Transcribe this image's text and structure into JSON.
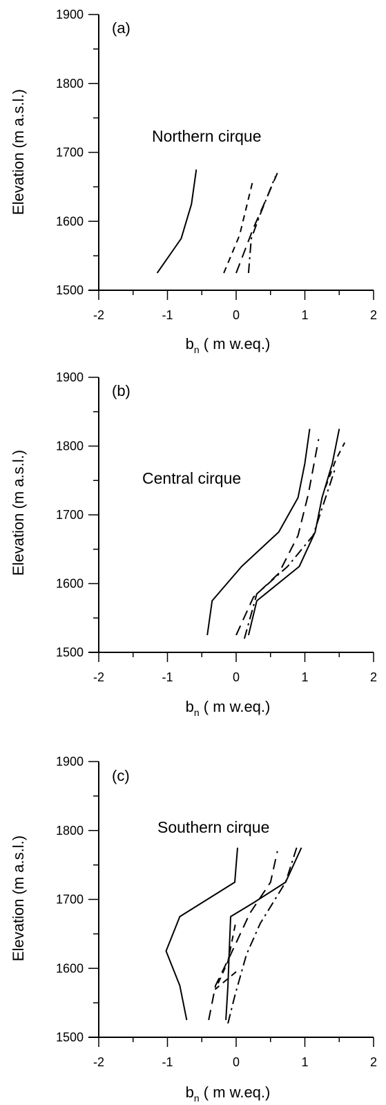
{
  "figure": {
    "colors": {
      "ink": "#000000",
      "background": "#ffffff"
    }
  },
  "chart_data": [
    {
      "type": "line",
      "panel_label": "(a)",
      "annotation": "Northern cirque",
      "xlabel_main": "b",
      "xlabel_sub": "n",
      "xlabel_rest": " ( m w.eq.)",
      "ylabel": "Elevation (m a.s.l.)",
      "xlim": [
        -2,
        2
      ],
      "ylim": [
        1500,
        1900
      ],
      "xticks": [
        -2,
        -1,
        0,
        1,
        2
      ],
      "yticks": [
        1500,
        1600,
        1700,
        1800,
        1900
      ],
      "grid": false,
      "series": [
        {
          "style": "solid",
          "points": [
            [
              -1.15,
              1525
            ],
            [
              -0.8,
              1575
            ],
            [
              -0.65,
              1625
            ],
            [
              -0.58,
              1675
            ]
          ]
        },
        {
          "style": "longdash",
          "points": [
            [
              0.0,
              1525
            ],
            [
              0.25,
              1590
            ],
            [
              0.45,
              1635
            ],
            [
              0.6,
              1670
            ]
          ]
        },
        {
          "style": "dash",
          "points": [
            [
              -0.18,
              1525
            ],
            [
              0.05,
              1580
            ],
            [
              0.25,
              1662
            ]
          ]
        },
        {
          "style": "dashdot",
          "points": [
            [
              0.18,
              1525
            ],
            [
              0.22,
              1575
            ],
            [
              0.35,
              1610
            ],
            [
              0.57,
              1665
            ]
          ]
        }
      ]
    },
    {
      "type": "line",
      "panel_label": "(b)",
      "annotation": "Central cirque",
      "xlabel_main": "b",
      "xlabel_sub": "n",
      "xlabel_rest": " ( m w.eq.)",
      "ylabel": "Elevation (m a.s.l.)",
      "xlim": [
        -2,
        2
      ],
      "ylim": [
        1500,
        1900
      ],
      "xticks": [
        -2,
        -1,
        0,
        1,
        2
      ],
      "yticks": [
        1500,
        1600,
        1700,
        1800,
        1900
      ],
      "grid": false,
      "series": [
        {
          "style": "solid",
          "points": [
            [
              -0.42,
              1525
            ],
            [
              -0.35,
              1575
            ],
            [
              0.08,
              1625
            ],
            [
              0.62,
              1675
            ],
            [
              0.9,
              1725
            ],
            [
              1.0,
              1775
            ],
            [
              1.07,
              1825
            ]
          ]
        },
        {
          "style": "solid",
          "points": [
            [
              0.18,
              1525
            ],
            [
              0.3,
              1575
            ],
            [
              0.92,
              1625
            ],
            [
              1.15,
              1675
            ],
            [
              1.25,
              1725
            ],
            [
              1.4,
              1775
            ],
            [
              1.5,
              1825
            ]
          ]
        },
        {
          "style": "longdash",
          "points": [
            [
              0.0,
              1525
            ],
            [
              0.25,
              1580
            ],
            [
              0.62,
              1615
            ],
            [
              0.9,
              1670
            ],
            [
              1.05,
              1730
            ],
            [
              1.2,
              1810
            ]
          ]
        },
        {
          "style": "dashdot",
          "points": [
            [
              0.12,
              1520
            ],
            [
              0.3,
              1585
            ],
            [
              0.75,
              1625
            ],
            [
              1.12,
              1670
            ],
            [
              1.45,
              1770
            ]
          ]
        },
        {
          "style": "dash",
          "points": [
            [
              1.3,
              1740
            ],
            [
              1.45,
              1780
            ],
            [
              1.58,
              1805
            ]
          ]
        }
      ]
    },
    {
      "type": "line",
      "panel_label": "(c)",
      "annotation": "Southern cirque",
      "xlabel_main": "b",
      "xlabel_sub": "n",
      "xlabel_rest": " ( m w.eq.)",
      "ylabel": "Elevation (m a.s.l.)",
      "xlim": [
        -2,
        2
      ],
      "ylim": [
        1500,
        1900
      ],
      "xticks": [
        -2,
        -1,
        0,
        1,
        2
      ],
      "yticks": [
        1500,
        1600,
        1700,
        1800,
        1900
      ],
      "grid": false,
      "series": [
        {
          "style": "solid",
          "points": [
            [
              -0.72,
              1525
            ],
            [
              -0.82,
              1575
            ],
            [
              -1.02,
              1625
            ],
            [
              -0.82,
              1675
            ],
            [
              -0.02,
              1725
            ],
            [
              0.02,
              1775
            ]
          ]
        },
        {
          "style": "solid",
          "points": [
            [
              -0.15,
              1525
            ],
            [
              -0.12,
              1575
            ],
            [
              -0.1,
              1625
            ],
            [
              -0.08,
              1675
            ],
            [
              0.25,
              1695
            ],
            [
              0.72,
              1725
            ],
            [
              0.95,
              1775
            ]
          ]
        },
        {
          "style": "longdash",
          "points": [
            [
              -0.4,
              1525
            ],
            [
              -0.3,
              1575
            ],
            [
              -0.08,
              1620
            ],
            [
              0.2,
              1680
            ],
            [
              0.5,
              1725
            ],
            [
              0.6,
              1770
            ]
          ]
        },
        {
          "style": "dashdot",
          "points": [
            [
              -0.12,
              1520
            ],
            [
              -0.02,
              1560
            ],
            [
              0.15,
              1620
            ],
            [
              0.35,
              1665
            ],
            [
              0.72,
              1725
            ],
            [
              0.88,
              1775
            ]
          ]
        },
        {
          "style": "dash",
          "points": [
            [
              0.0,
              1595
            ],
            [
              -0.3,
              1570
            ],
            [
              -0.12,
              1610
            ],
            [
              0.0,
              1670
            ]
          ]
        }
      ]
    }
  ]
}
